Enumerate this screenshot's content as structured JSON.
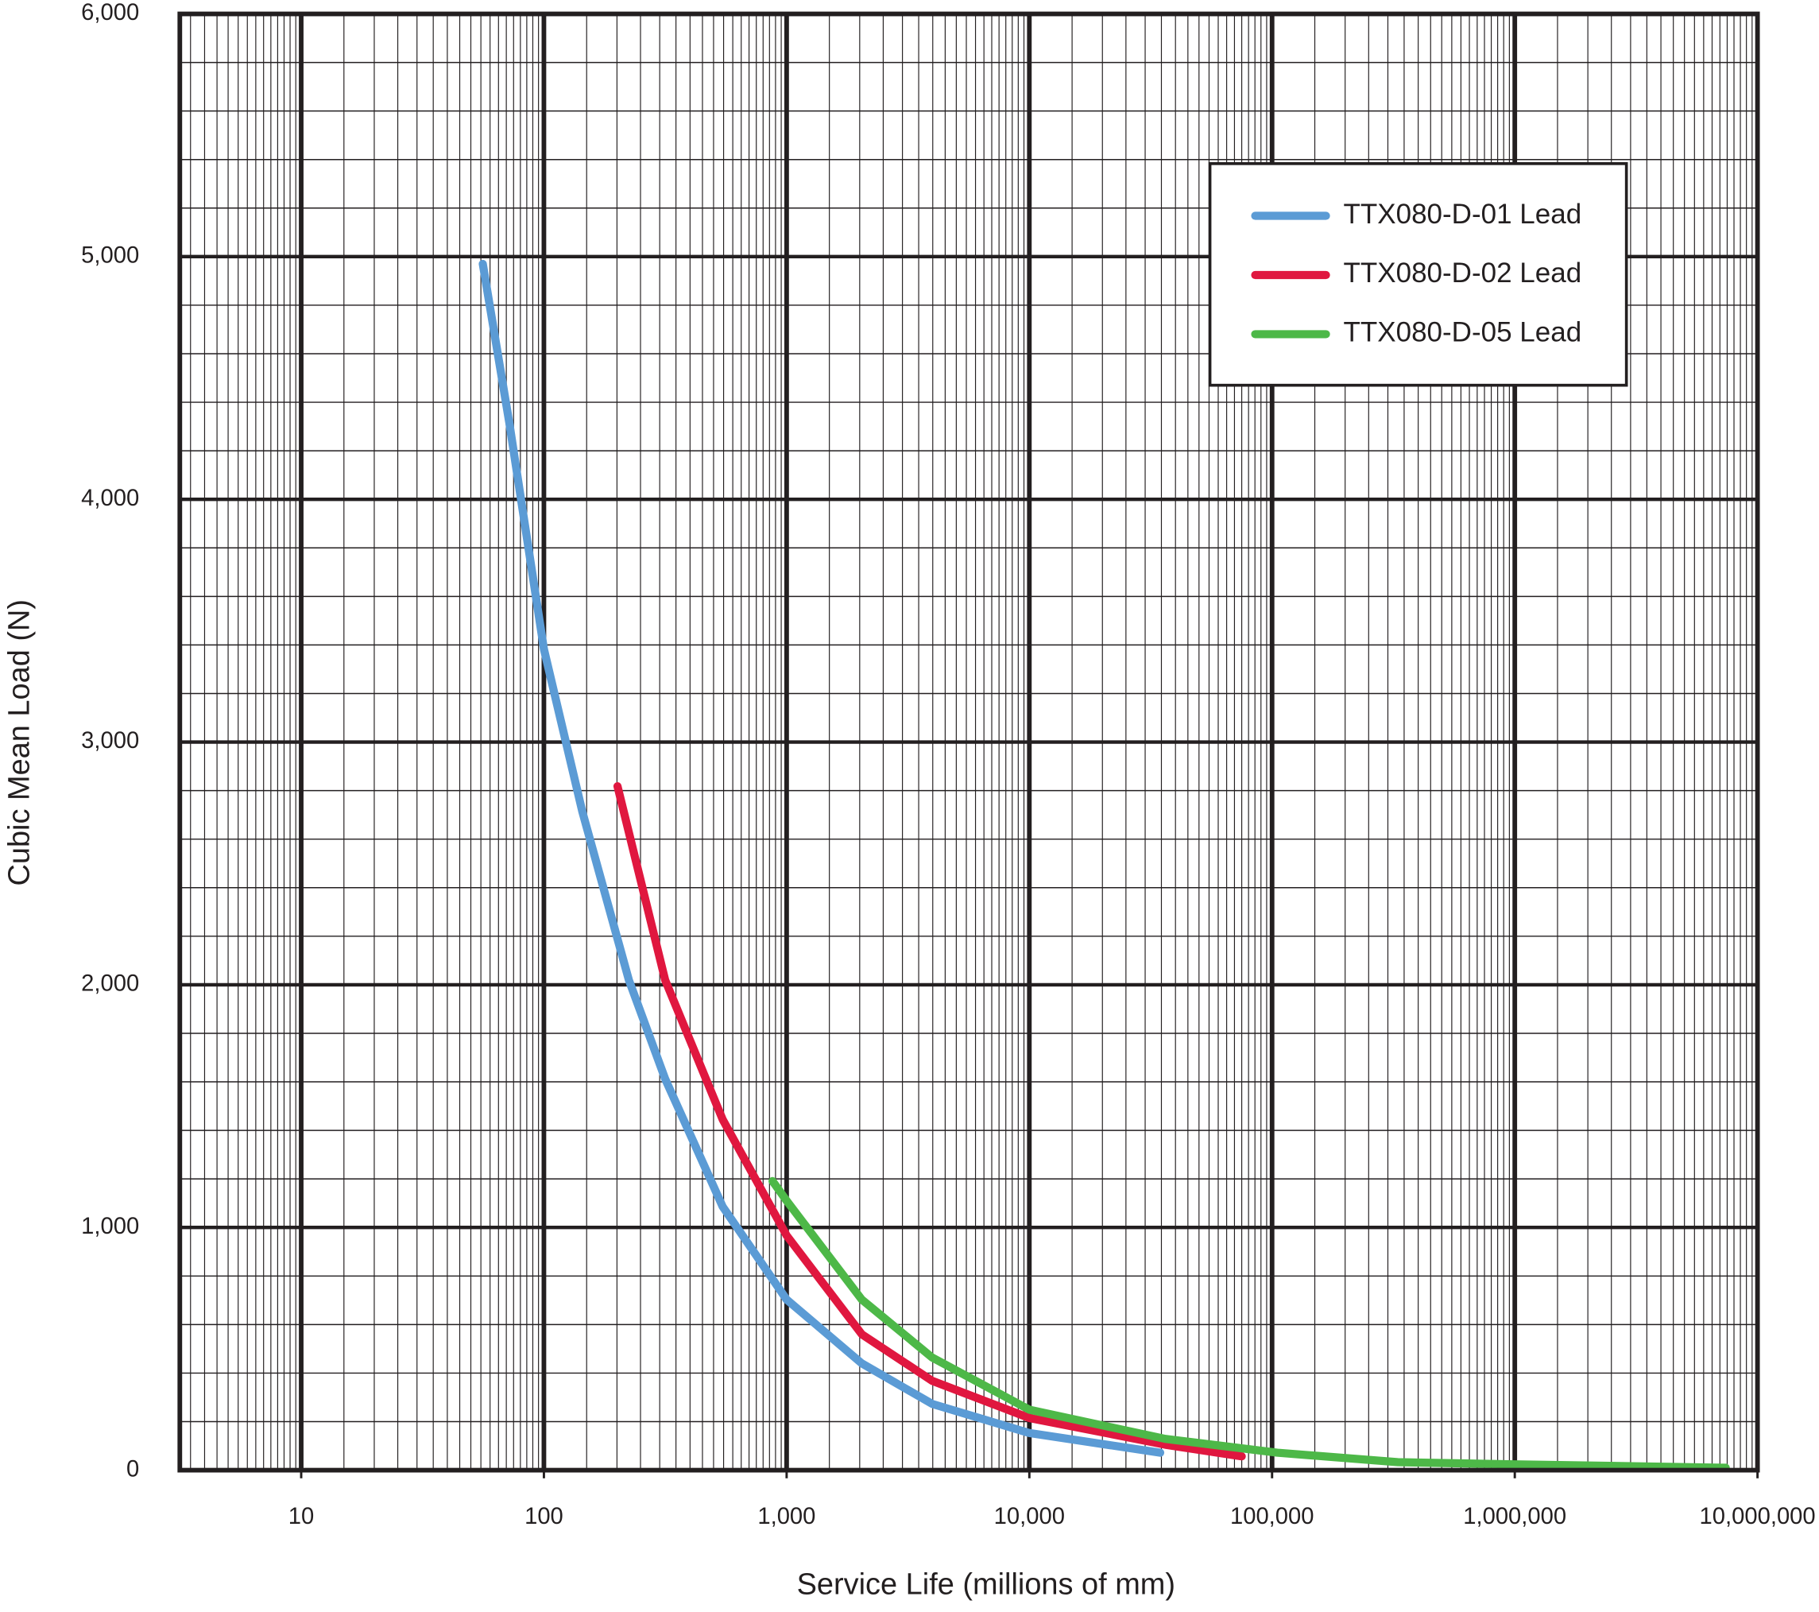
{
  "chart_data": {
    "type": "line",
    "x_label": "Service Life (millions of mm)",
    "y_label": "Cubic Mean Load (N)",
    "xscale": "log",
    "grid": true,
    "legend": "upper right",
    "xlim": [
      3.162,
      10000000
    ],
    "xticks": [
      10,
      100,
      {
        "value": 1000,
        "label": "1,000"
      },
      {
        "value": 10000,
        "label": "10,000"
      },
      {
        "value": 100000,
        "label": "100,000"
      },
      {
        "value": 1000000,
        "label": "1,000,000"
      },
      {
        "value": 10000000,
        "label": "10,000,000"
      }
    ],
    "ylim": [
      0,
      6000
    ],
    "yticks": [
      0,
      {
        "value": 1000,
        "label": "1,000"
      },
      {
        "value": 2000,
        "label": "2,000"
      },
      {
        "value": 3000,
        "label": "3,000"
      },
      {
        "value": 4000,
        "label": "4,000"
      },
      {
        "value": 5000,
        "label": "5,000"
      },
      {
        "value": 6000,
        "label": "6,000"
      }
    ],
    "series": [
      {
        "name": "TTX080-D-01 Lead",
        "color": "#5b9bd5",
        "x": [
          56,
          72,
          100,
          144,
          224,
          316,
          545,
          1000,
          2040,
          3980,
          10000,
          34600
        ],
        "values": [
          4970,
          4316,
          3383,
          2713,
          2019,
          1612,
          1086,
          703,
          440,
          273,
          153,
          72
        ]
      },
      {
        "name": "TTX080-D-02 Lead",
        "color": "#e0173f",
        "x": [
          201,
          316,
          545,
          1000,
          2040,
          3980,
          10000,
          36300,
          75000
        ],
        "values": [
          2818,
          2019,
          1445,
          967,
          560,
          368,
          215,
          105,
          57
        ]
      },
      {
        "name": "TTX080-D-05 Lead",
        "color": "#4db848",
        "x": [
          875,
          1000,
          2040,
          3980,
          10000,
          36300,
          105000,
          330000,
          1000000,
          7400000
        ],
        "values": [
          1191,
          1110,
          703,
          464,
          249,
          129,
          72,
          33,
          24,
          10
        ]
      }
    ]
  }
}
